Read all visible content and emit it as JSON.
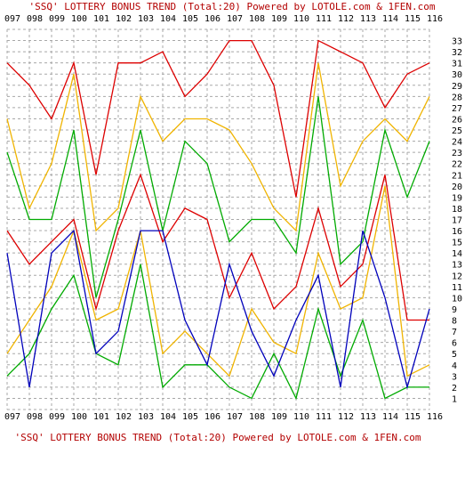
{
  "chart_data": {
    "type": "line",
    "title": "'SSQ' LOTTERY BONUS TREND (Total:20)  Powered by LOTOLE.com & 1FEN.com",
    "footer": "'SSQ' LOTTERY BONUS TREND (Total:20)  Powered by LOTOLE.com & 1FEN.com",
    "categories": [
      "097",
      "098",
      "099",
      "100",
      "101",
      "102",
      "103",
      "104",
      "105",
      "106",
      "107",
      "108",
      "109",
      "110",
      "111",
      "112",
      "113",
      "114",
      "115",
      "116"
    ],
    "y_ticks": [
      1,
      2,
      3,
      4,
      5,
      6,
      7,
      8,
      9,
      10,
      11,
      12,
      13,
      14,
      15,
      16,
      17,
      18,
      19,
      20,
      21,
      22,
      23,
      24,
      25,
      26,
      27,
      28,
      29,
      30,
      31,
      32,
      33
    ],
    "ylim": [
      0,
      34
    ],
    "grid": true,
    "colors": {
      "grid": "#a8a8a8",
      "red": "#dd0000",
      "yellow": "#f0b400",
      "green": "#00aa00",
      "blue": "#0000bb",
      "title": "#b30000"
    },
    "series": [
      {
        "color": "#dd0000",
        "values": [
          31,
          29,
          26,
          31,
          21,
          31,
          31,
          32,
          28,
          30,
          33,
          33,
          29,
          19,
          33,
          32,
          31,
          27,
          30,
          31
        ]
      },
      {
        "color": "#f0b400",
        "values": [
          26,
          18,
          22,
          30,
          16,
          18,
          28,
          24,
          26,
          26,
          25,
          22,
          18,
          16,
          31,
          20,
          24,
          26,
          24,
          28
        ]
      },
      {
        "color": "#00aa00",
        "values": [
          23,
          17,
          17,
          25,
          10,
          17,
          25,
          16,
          24,
          22,
          15,
          17,
          17,
          14,
          28,
          13,
          15,
          25,
          19,
          24
        ]
      },
      {
        "color": "#dd0000",
        "values": [
          16,
          13,
          15,
          17,
          9,
          16,
          21,
          15,
          18,
          17,
          10,
          14,
          9,
          11,
          18,
          11,
          13,
          21,
          8,
          8
        ]
      },
      {
        "color": "#f0b400",
        "values": [
          5,
          8,
          11,
          16,
          8,
          9,
          16,
          5,
          7,
          5,
          3,
          9,
          6,
          5,
          14,
          9,
          10,
          20,
          3,
          4
        ]
      },
      {
        "color": "#00aa00",
        "values": [
          3,
          5,
          9,
          12,
          5,
          4,
          13,
          2,
          4,
          4,
          2,
          1,
          5,
          1,
          9,
          3,
          8,
          1,
          2,
          2
        ]
      },
      {
        "color": "#0000bb",
        "values": [
          14,
          2,
          14,
          16,
          5,
          7,
          16,
          16,
          8,
          4,
          13,
          7,
          3,
          8,
          12,
          2,
          16,
          10,
          2,
          9
        ]
      }
    ]
  }
}
